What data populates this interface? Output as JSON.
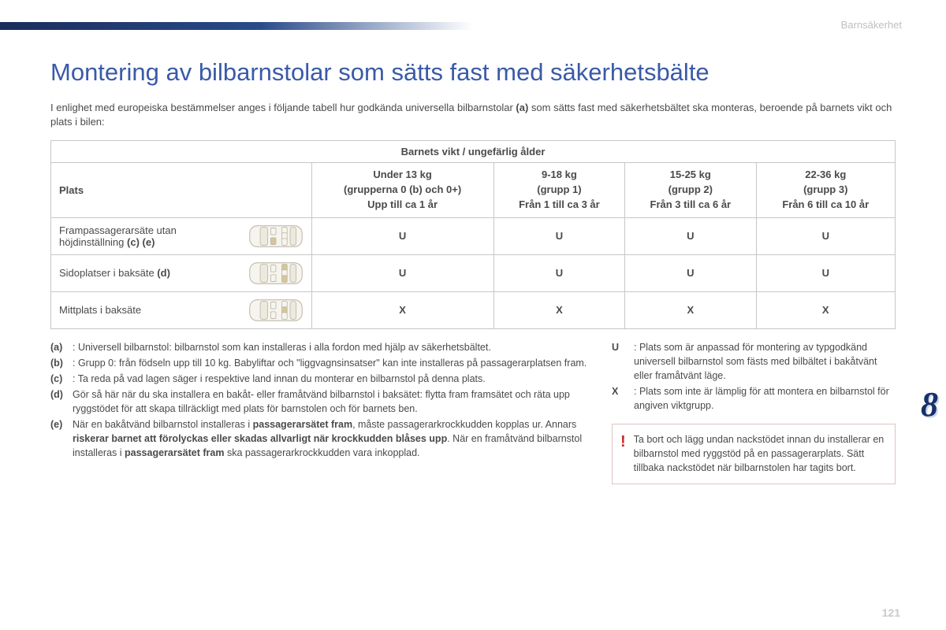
{
  "header": {
    "section_label": "Barnsäkerhet",
    "chapter_number": "8",
    "page_number": "121"
  },
  "title": "Montering av bilbarnstolar som sätts fast med säkerhetsbälte",
  "intro_prefix": "I enlighet med europeiska bestämmelser anges i följande tabell hur godkända universella bilbarnstolar ",
  "intro_bold": "(a)",
  "intro_suffix": " som sätts fast med säkerhetsbältet ska monteras, beroende på barnets vikt och plats i bilen:",
  "table": {
    "span_header": "Barnets vikt / ungefärlig ålder",
    "plats_label": "Plats",
    "columns": [
      {
        "weight": "Under 13 kg",
        "group_pre": "(grupperna 0 (",
        "group_bold": "b",
        "group_post": ") och 0+)",
        "age": "Upp till ca 1 år"
      },
      {
        "weight": "9-18 kg",
        "group_pre": "(grupp 1)",
        "group_bold": "",
        "group_post": "",
        "age": "Från 1 till ca 3 år"
      },
      {
        "weight": "15-25 kg",
        "group_pre": "(grupp 2)",
        "group_bold": "",
        "group_post": "",
        "age": "Från 3 till ca 6 år"
      },
      {
        "weight": "22-36 kg",
        "group_pre": "(grupp 3)",
        "group_bold": "",
        "group_post": "",
        "age": "Från 6 till ca 10 år"
      }
    ],
    "rows": [
      {
        "label_pre": "Frampassagerarsäte utan höjdinställning ",
        "label_bold": "(c) (e)",
        "cells": [
          "U",
          "U",
          "U",
          "U"
        ],
        "highlight": "front-right"
      },
      {
        "label_pre": "Sidoplatser i baksäte ",
        "label_bold": "(d)",
        "cells": [
          "U",
          "U",
          "U",
          "U"
        ],
        "highlight": "rear-sides"
      },
      {
        "label_pre": "Mittplats i baksäte",
        "label_bold": "",
        "cells": [
          "X",
          "X",
          "X",
          "X"
        ],
        "highlight": "rear-center"
      }
    ]
  },
  "notes_left": [
    {
      "key": "(a)",
      "bold_key": true,
      "segments": [
        {
          "t": ": Universell bilbarnstol: bilbarnstol som kan installeras i alla fordon med hjälp av säkerhetsbältet."
        }
      ]
    },
    {
      "key": "(b)",
      "bold_key": true,
      "segments": [
        {
          "t": ": Grupp 0: från födseln upp till 10 kg. Babyliftar och \"liggvagnsinsatser\" kan inte installeras på passagerarplatsen fram."
        }
      ]
    },
    {
      "key": "(c)",
      "bold_key": true,
      "segments": [
        {
          "t": ": Ta reda på vad lagen säger i respektive land innan du monterar en bilbarnstol på denna plats."
        }
      ]
    },
    {
      "key": "(d)",
      "bold_key": true,
      "segments": [
        {
          "t": " Gör så här när du ska installera en bakåt- eller framåtvänd bilbarnstol i baksätet: flytta fram framsätet och räta upp ryggstödet för att skapa tillräckligt med plats för barnstolen och för barnets ben."
        }
      ]
    },
    {
      "key": "(e)",
      "bold_key": true,
      "segments": [
        {
          "t": " När en bakåtvänd bilbarnstol installeras i "
        },
        {
          "t": "passagerarsätet fram",
          "b": true
        },
        {
          "t": ", måste passagerarkrockkudden kopplas ur. Annars "
        },
        {
          "t": "riskerar barnet att förolyckas eller skadas allvarligt när krockkudden blåses upp",
          "b": true
        },
        {
          "t": ". När en framåtvänd bilbarnstol installeras i "
        },
        {
          "t": "passagerarsätet fram",
          "b": true
        },
        {
          "t": " ska passagerarkrockkudden vara inkopplad."
        }
      ]
    }
  ],
  "notes_right": [
    {
      "key": "U",
      "bold_key": true,
      "text": ": Plats som är anpassad för montering av typgodkänd universell bilbarnstol som fästs med bilbältet i bakåtvänt eller framåtvänt läge."
    },
    {
      "key": "X",
      "bold_key": true,
      "text": ": Plats som inte är lämplig för att montera en bilbarnstol för angiven viktgrupp."
    }
  ],
  "warning": "Ta bort och lägg undan nackstödet innan du installerar en bilbarnstol med ryggstöd på en passagerarplats. Sätt tillbaka nackstödet när bilbarnstolen har tagits bort.",
  "colors": {
    "title": "#3a5aa8",
    "bar_dark": "#1a2d5c",
    "chapter_no": "#16316a",
    "warn_border": "#e2c1c1",
    "cell_border": "#c7c7c7",
    "highlight": "#d6c79a",
    "car_body": "#f6f4ee",
    "car_outline": "#b8b2a2"
  }
}
